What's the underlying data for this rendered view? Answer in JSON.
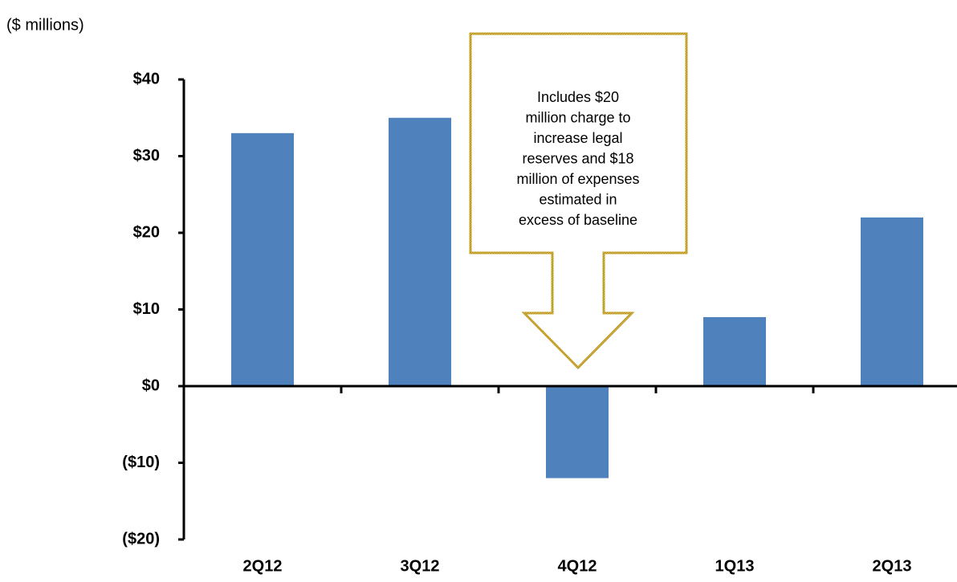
{
  "chart_data": {
    "type": "bar",
    "y_label": "($ millions)",
    "categories": [
      "2Q12",
      "3Q12",
      "4Q12",
      "1Q13",
      "2Q13"
    ],
    "values": [
      33,
      35,
      -12,
      9,
      22
    ],
    "color": "#4f81bd",
    "ylim": [
      -20,
      40
    ],
    "yticks": [
      {
        "value": -20,
        "label": "($20)"
      },
      {
        "value": -10,
        "label": "($10)"
      },
      {
        "value": 0,
        "label": "$0"
      },
      {
        "value": 10,
        "label": "$10"
      },
      {
        "value": 20,
        "label": "$20"
      },
      {
        "value": 30,
        "label": "$30"
      },
      {
        "value": 40,
        "label": "$40"
      }
    ],
    "grid": false,
    "annotation": [
      "Includes $20",
      "million charge to",
      "increase legal",
      "reserves and $18",
      "million of expenses",
      "estimated in",
      "excess of baseline"
    ]
  }
}
